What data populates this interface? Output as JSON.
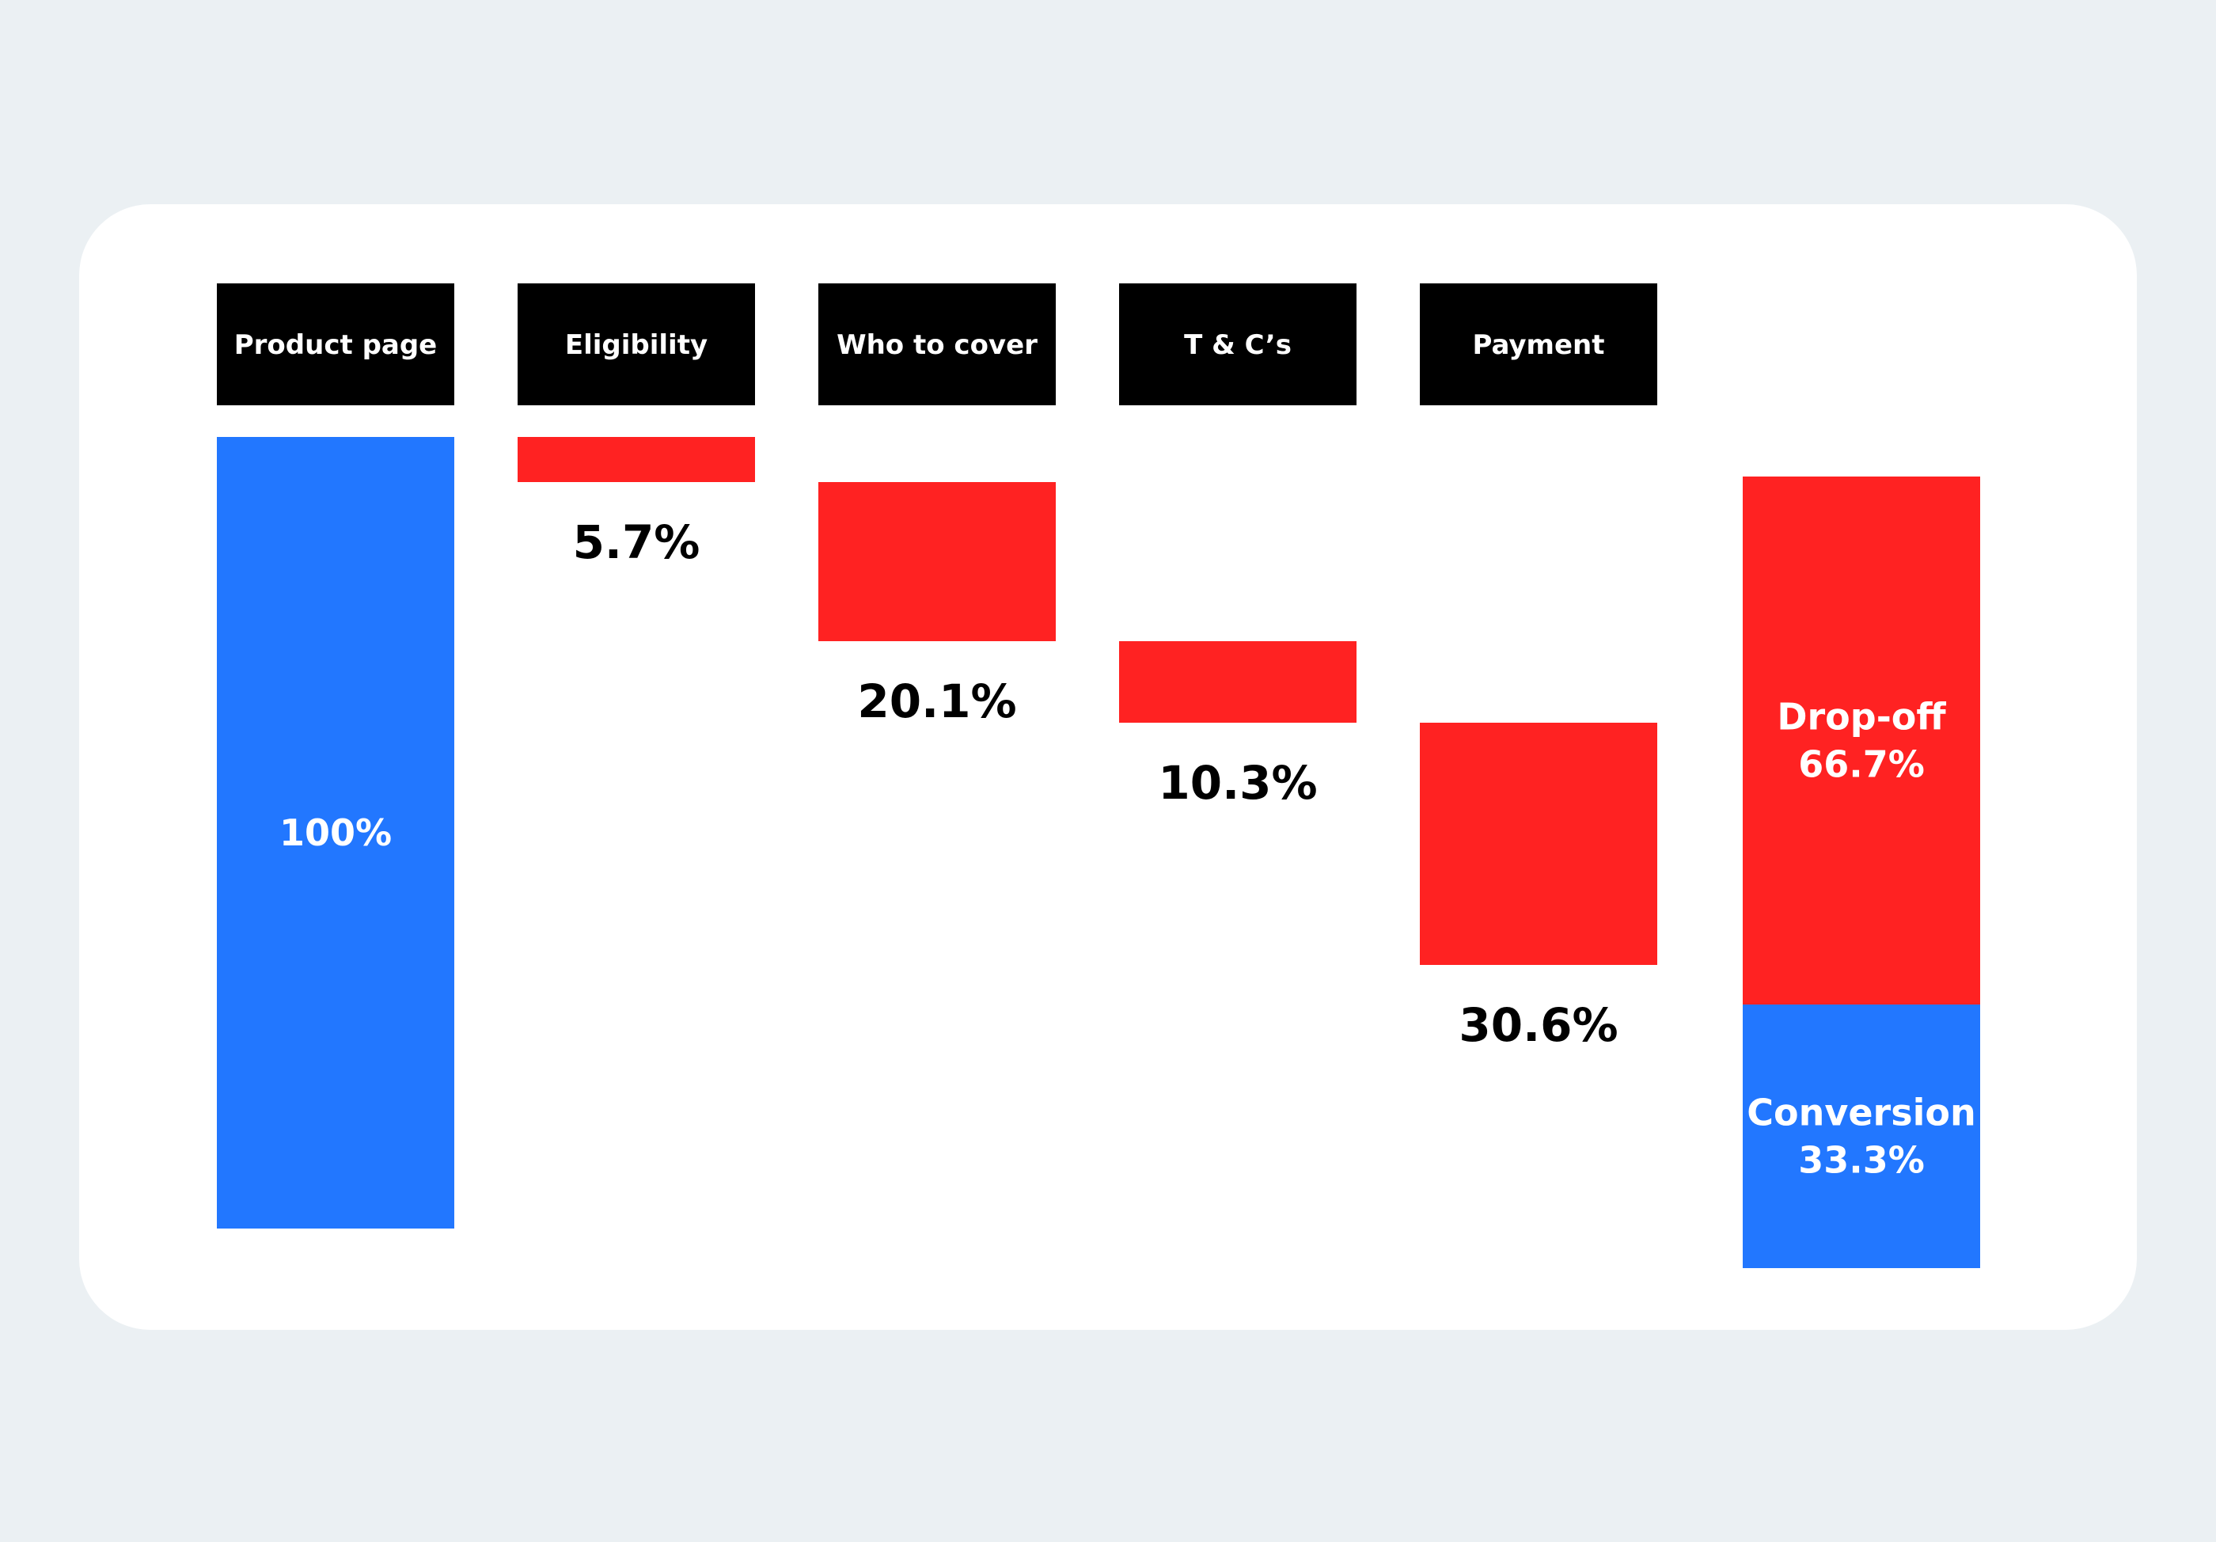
{
  "chart_data": {
    "type": "bar",
    "subtype": "waterfall-funnel",
    "steps": [
      {
        "label": "Product page",
        "value": 100,
        "value_label": "100%",
        "kind": "total"
      },
      {
        "label": "Eligibility",
        "value": 5.7,
        "value_label": "5.7%",
        "kind": "drop"
      },
      {
        "label": "Who to cover",
        "value": 20.1,
        "value_label": "20.1%",
        "kind": "drop"
      },
      {
        "label": "T & C’s",
        "value": 10.3,
        "value_label": "10.3%",
        "kind": "drop"
      },
      {
        "label": "Payment",
        "value": 30.6,
        "value_label": "30.6%",
        "kind": "drop"
      }
    ],
    "summary": {
      "dropoff": {
        "name": "Drop-off",
        "value": 66.7,
        "value_label": "66.7%"
      },
      "conversion": {
        "name": "Conversion",
        "value": 33.3,
        "value_label": "33.3%"
      }
    },
    "colors": {
      "total": "#2277ff",
      "drop": "#ff2222",
      "header": "#000000",
      "header_text": "#ffffff",
      "label_text": "#000000",
      "card": "#ffffff",
      "background": "#ebf0f3"
    },
    "title": "",
    "xlabel": "",
    "ylabel": "",
    "ylim": [
      0,
      100
    ],
    "grid": false,
    "legend": "none"
  }
}
